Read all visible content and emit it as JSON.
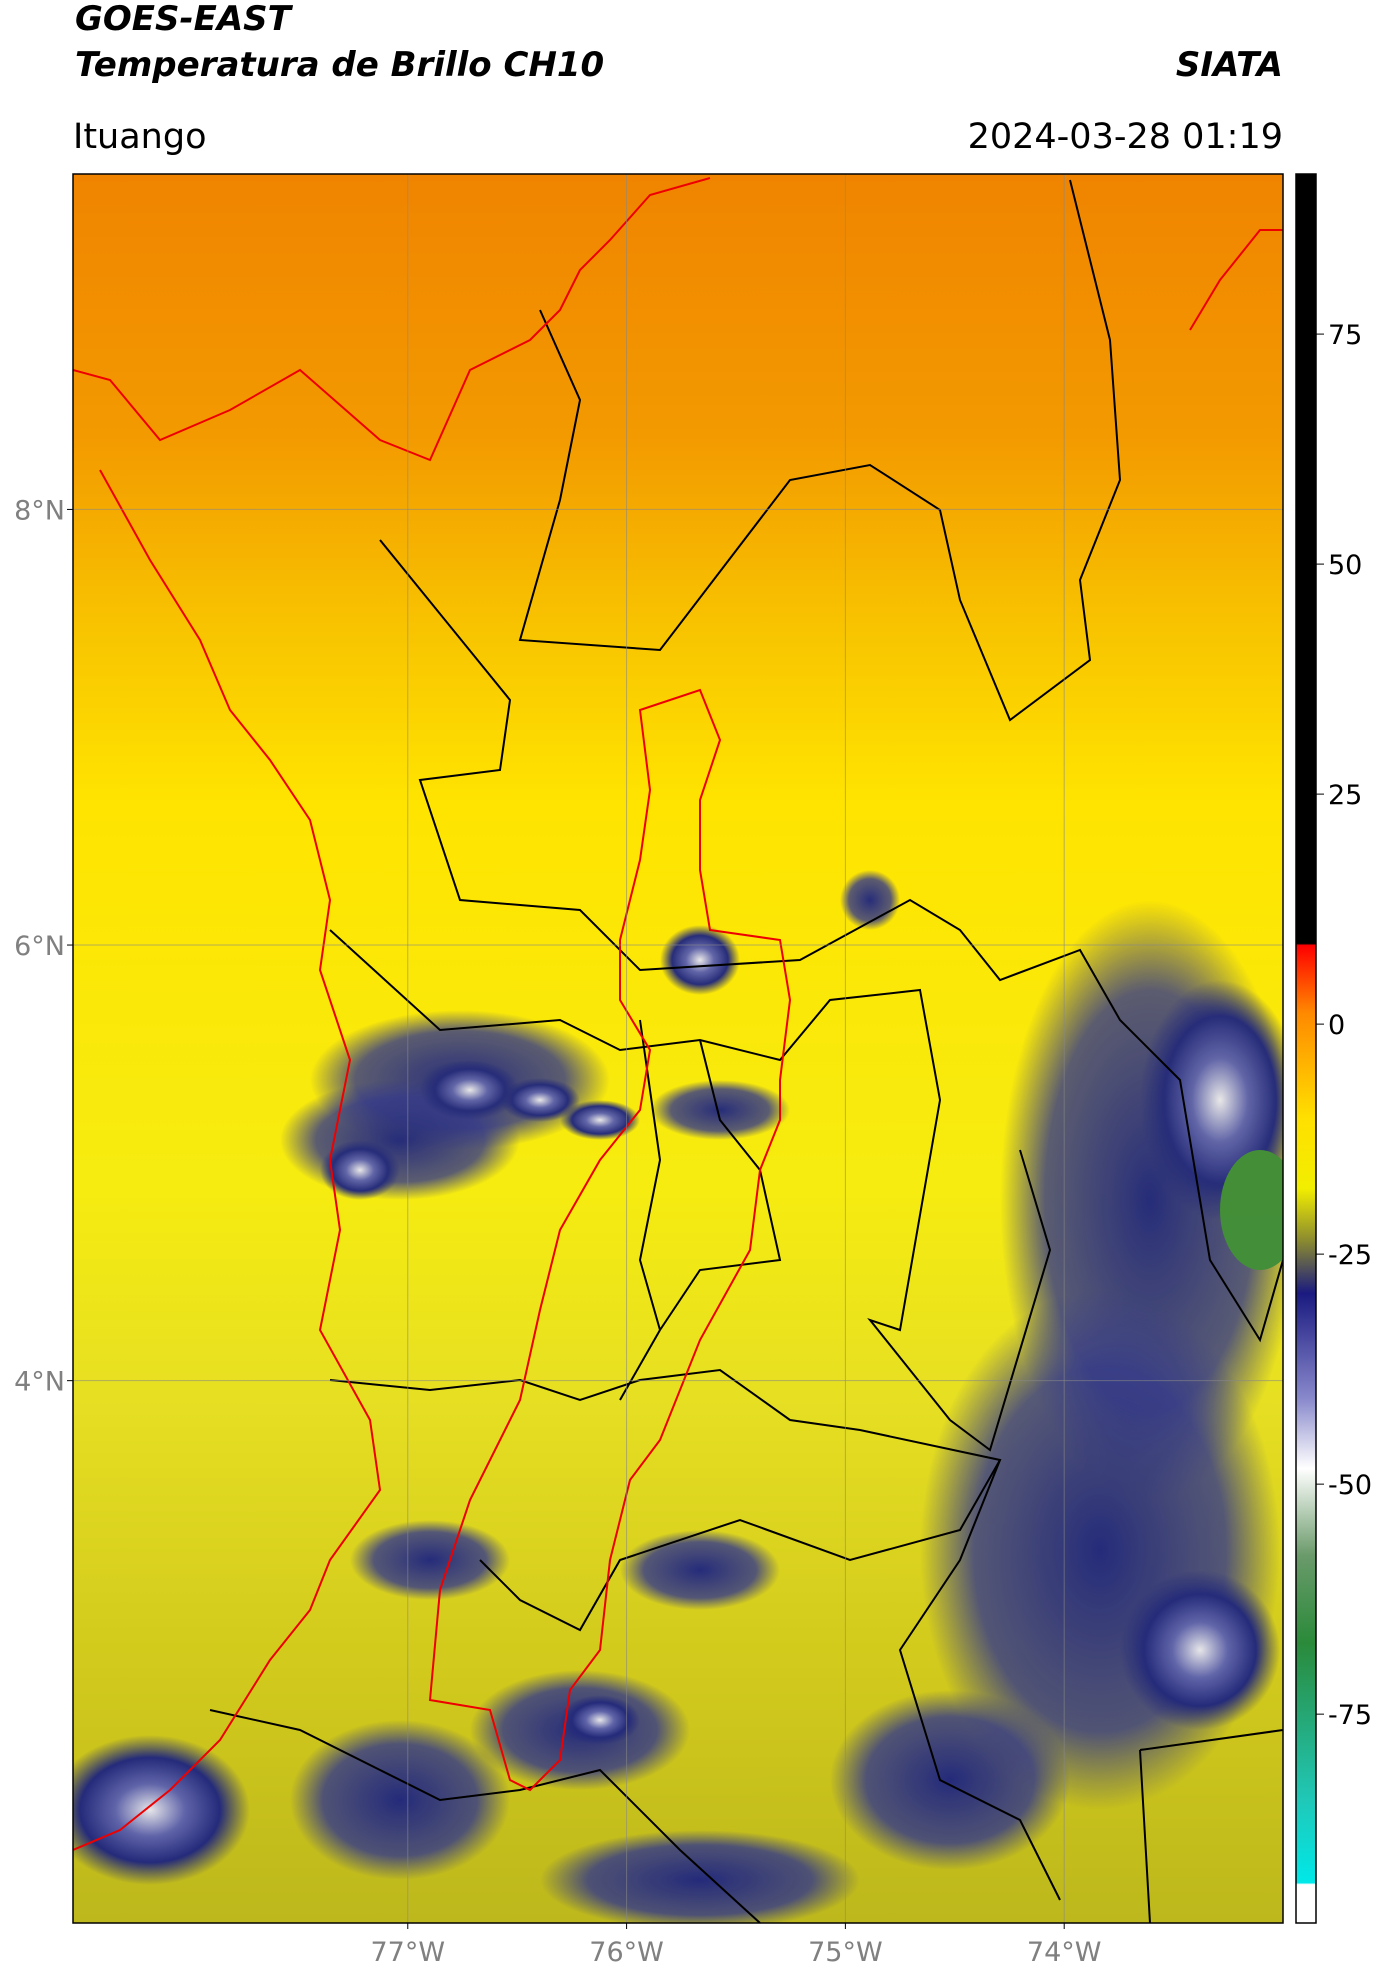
{
  "header": {
    "title": "GOES-EAST",
    "subtitle": "Temperatura de Brillo CH10",
    "source": "SIATA",
    "location": "Ituango",
    "timestamp": "2024-03-28 01:19"
  },
  "map": {
    "latlim": [
      1.51,
      9.54
    ],
    "lonlim": [
      -78.53,
      -73.0
    ],
    "grid": true,
    "latticks": [
      {
        "value": 8,
        "label": "8°N"
      },
      {
        "value": 6,
        "label": "6°N"
      },
      {
        "value": 4,
        "label": "4°N"
      }
    ],
    "lonticks": [
      {
        "value": -77,
        "label": "77°W"
      },
      {
        "value": -76,
        "label": "76°W"
      },
      {
        "value": -75,
        "label": "75°W"
      },
      {
        "value": -74,
        "label": "74°W"
      }
    ]
  },
  "colorbar": {
    "lim": [
      -97.7,
      92.4
    ],
    "ticks": [
      75,
      50,
      25,
      0,
      -25,
      -50,
      -75
    ]
  }
}
